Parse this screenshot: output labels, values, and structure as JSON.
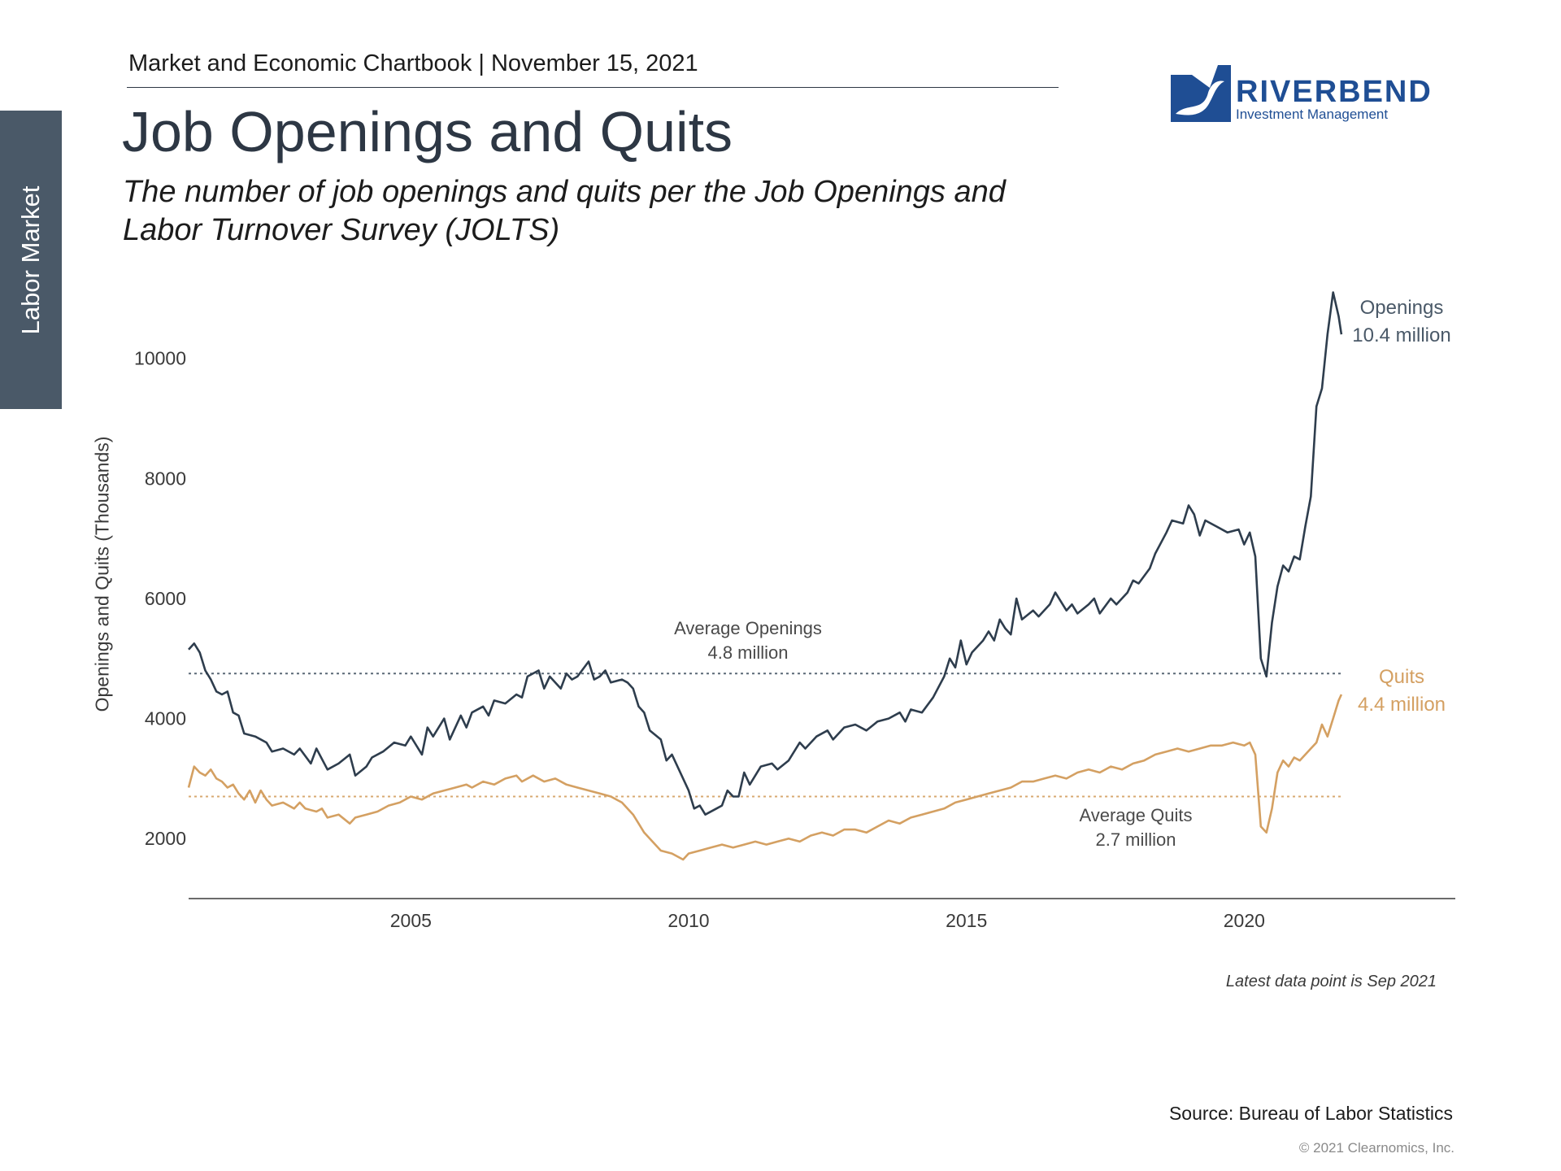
{
  "header": {
    "chartbook": "Market and Economic Chartbook | November 15, 2021",
    "title": "Job Openings and Quits",
    "subtitle": "The number of job openings and quits per the Job Openings and Labor Turnover Survey (JOLTS)"
  },
  "side_tab": {
    "label": "Labor Market"
  },
  "logo": {
    "name": "RIVERBEND",
    "tagline": "Investment Management",
    "color": "#1f4e94"
  },
  "footer": {
    "note": "Latest data point is Sep 2021",
    "source": "Source: Bureau of Labor Statistics",
    "copyright": "© 2021 Clearnomics, Inc."
  },
  "chart_data": {
    "type": "line",
    "title": "Job Openings and Quits",
    "xlabel": "",
    "ylabel": "Openings and Quits (Thousands)",
    "xlim": [
      2001.0,
      2023.8
    ],
    "ylim": [
      1000,
      11500
    ],
    "x_ticks": [
      2005,
      2010,
      2015,
      2020
    ],
    "y_ticks": [
      2000,
      4000,
      6000,
      8000,
      10000
    ],
    "grid": false,
    "series": [
      {
        "name": "Openings",
        "color": "#2e3d4d",
        "end_label": [
          "Openings",
          "10.4 million"
        ],
        "points": [
          [
            2001.0,
            5150
          ],
          [
            2001.1,
            5250
          ],
          [
            2001.2,
            5100
          ],
          [
            2001.3,
            4800
          ],
          [
            2001.4,
            4650
          ],
          [
            2001.5,
            4450
          ],
          [
            2001.6,
            4400
          ],
          [
            2001.7,
            4450
          ],
          [
            2001.8,
            4100
          ],
          [
            2001.9,
            4050
          ],
          [
            2002.0,
            3750
          ],
          [
            2002.2,
            3700
          ],
          [
            2002.4,
            3600
          ],
          [
            2002.5,
            3450
          ],
          [
            2002.7,
            3500
          ],
          [
            2002.9,
            3400
          ],
          [
            2003.0,
            3500
          ],
          [
            2003.2,
            3250
          ],
          [
            2003.3,
            3500
          ],
          [
            2003.5,
            3150
          ],
          [
            2003.7,
            3250
          ],
          [
            2003.9,
            3400
          ],
          [
            2004.0,
            3050
          ],
          [
            2004.2,
            3200
          ],
          [
            2004.3,
            3350
          ],
          [
            2004.5,
            3450
          ],
          [
            2004.7,
            3600
          ],
          [
            2004.9,
            3550
          ],
          [
            2005.0,
            3700
          ],
          [
            2005.2,
            3400
          ],
          [
            2005.3,
            3850
          ],
          [
            2005.4,
            3700
          ],
          [
            2005.6,
            4000
          ],
          [
            2005.7,
            3650
          ],
          [
            2005.9,
            4050
          ],
          [
            2006.0,
            3850
          ],
          [
            2006.1,
            4100
          ],
          [
            2006.3,
            4200
          ],
          [
            2006.4,
            4050
          ],
          [
            2006.5,
            4300
          ],
          [
            2006.7,
            4250
          ],
          [
            2006.9,
            4400
          ],
          [
            2007.0,
            4350
          ],
          [
            2007.1,
            4700
          ],
          [
            2007.3,
            4800
          ],
          [
            2007.4,
            4500
          ],
          [
            2007.5,
            4700
          ],
          [
            2007.7,
            4500
          ],
          [
            2007.8,
            4750
          ],
          [
            2007.9,
            4650
          ],
          [
            2008.0,
            4700
          ],
          [
            2008.2,
            4950
          ],
          [
            2008.3,
            4650
          ],
          [
            2008.4,
            4700
          ],
          [
            2008.5,
            4800
          ],
          [
            2008.6,
            4600
          ],
          [
            2008.8,
            4650
          ],
          [
            2008.9,
            4600
          ],
          [
            2009.0,
            4500
          ],
          [
            2009.1,
            4200
          ],
          [
            2009.2,
            4100
          ],
          [
            2009.3,
            3800
          ],
          [
            2009.5,
            3650
          ],
          [
            2009.6,
            3300
          ],
          [
            2009.7,
            3400
          ],
          [
            2009.9,
            3000
          ],
          [
            2010.0,
            2800
          ],
          [
            2010.1,
            2500
          ],
          [
            2010.2,
            2550
          ],
          [
            2010.3,
            2400
          ],
          [
            2010.5,
            2500
          ],
          [
            2010.6,
            2550
          ],
          [
            2010.7,
            2800
          ],
          [
            2010.8,
            2700
          ],
          [
            2010.9,
            2700
          ],
          [
            2011.0,
            3100
          ],
          [
            2011.1,
            2900
          ],
          [
            2011.2,
            3050
          ],
          [
            2011.3,
            3200
          ],
          [
            2011.5,
            3250
          ],
          [
            2011.6,
            3150
          ],
          [
            2011.8,
            3300
          ],
          [
            2012.0,
            3600
          ],
          [
            2012.1,
            3500
          ],
          [
            2012.3,
            3700
          ],
          [
            2012.5,
            3800
          ],
          [
            2012.6,
            3650
          ],
          [
            2012.8,
            3850
          ],
          [
            2013.0,
            3900
          ],
          [
            2013.2,
            3800
          ],
          [
            2013.4,
            3950
          ],
          [
            2013.6,
            4000
          ],
          [
            2013.8,
            4100
          ],
          [
            2013.9,
            3950
          ],
          [
            2014.0,
            4150
          ],
          [
            2014.2,
            4100
          ],
          [
            2014.4,
            4350
          ],
          [
            2014.6,
            4700
          ],
          [
            2014.7,
            5000
          ],
          [
            2014.8,
            4850
          ],
          [
            2014.9,
            5300
          ],
          [
            2015.0,
            4900
          ],
          [
            2015.1,
            5100
          ],
          [
            2015.3,
            5300
          ],
          [
            2015.4,
            5450
          ],
          [
            2015.5,
            5300
          ],
          [
            2015.6,
            5650
          ],
          [
            2015.7,
            5500
          ],
          [
            2015.8,
            5400
          ],
          [
            2015.9,
            6000
          ],
          [
            2016.0,
            5650
          ],
          [
            2016.2,
            5800
          ],
          [
            2016.3,
            5700
          ],
          [
            2016.5,
            5900
          ],
          [
            2016.6,
            6100
          ],
          [
            2016.8,
            5800
          ],
          [
            2016.9,
            5900
          ],
          [
            2017.0,
            5750
          ],
          [
            2017.2,
            5900
          ],
          [
            2017.3,
            6000
          ],
          [
            2017.4,
            5750
          ],
          [
            2017.6,
            6000
          ],
          [
            2017.7,
            5900
          ],
          [
            2017.9,
            6100
          ],
          [
            2018.0,
            6300
          ],
          [
            2018.1,
            6250
          ],
          [
            2018.3,
            6500
          ],
          [
            2018.4,
            6750
          ],
          [
            2018.6,
            7100
          ],
          [
            2018.7,
            7300
          ],
          [
            2018.9,
            7250
          ],
          [
            2019.0,
            7550
          ],
          [
            2019.1,
            7400
          ],
          [
            2019.2,
            7050
          ],
          [
            2019.3,
            7300
          ],
          [
            2019.5,
            7200
          ],
          [
            2019.7,
            7100
          ],
          [
            2019.9,
            7150
          ],
          [
            2020.0,
            6900
          ],
          [
            2020.1,
            7100
          ],
          [
            2020.2,
            6700
          ],
          [
            2020.3,
            5000
          ],
          [
            2020.4,
            4700
          ],
          [
            2020.5,
            5600
          ],
          [
            2020.6,
            6200
          ],
          [
            2020.7,
            6550
          ],
          [
            2020.8,
            6450
          ],
          [
            2020.9,
            6700
          ],
          [
            2021.0,
            6650
          ],
          [
            2021.1,
            7200
          ],
          [
            2021.2,
            7700
          ],
          [
            2021.3,
            9200
          ],
          [
            2021.4,
            9500
          ],
          [
            2021.5,
            10400
          ],
          [
            2021.6,
            11100
          ],
          [
            2021.7,
            10700
          ],
          [
            2021.75,
            10400
          ]
        ]
      },
      {
        "name": "Quits",
        "color": "#d4a062",
        "end_label": [
          "Quits",
          "4.4 million"
        ],
        "points": [
          [
            2001.0,
            2850
          ],
          [
            2001.1,
            3200
          ],
          [
            2001.2,
            3100
          ],
          [
            2001.3,
            3050
          ],
          [
            2001.4,
            3150
          ],
          [
            2001.5,
            3000
          ],
          [
            2001.6,
            2950
          ],
          [
            2001.7,
            2850
          ],
          [
            2001.8,
            2900
          ],
          [
            2001.9,
            2750
          ],
          [
            2002.0,
            2650
          ],
          [
            2002.1,
            2800
          ],
          [
            2002.2,
            2600
          ],
          [
            2002.3,
            2800
          ],
          [
            2002.4,
            2650
          ],
          [
            2002.5,
            2550
          ],
          [
            2002.7,
            2600
          ],
          [
            2002.9,
            2500
          ],
          [
            2003.0,
            2600
          ],
          [
            2003.1,
            2500
          ],
          [
            2003.3,
            2450
          ],
          [
            2003.4,
            2500
          ],
          [
            2003.5,
            2350
          ],
          [
            2003.7,
            2400
          ],
          [
            2003.9,
            2250
          ],
          [
            2004.0,
            2350
          ],
          [
            2004.2,
            2400
          ],
          [
            2004.4,
            2450
          ],
          [
            2004.6,
            2550
          ],
          [
            2004.8,
            2600
          ],
          [
            2005.0,
            2700
          ],
          [
            2005.2,
            2650
          ],
          [
            2005.4,
            2750
          ],
          [
            2005.6,
            2800
          ],
          [
            2005.8,
            2850
          ],
          [
            2006.0,
            2900
          ],
          [
            2006.1,
            2850
          ],
          [
            2006.3,
            2950
          ],
          [
            2006.5,
            2900
          ],
          [
            2006.7,
            3000
          ],
          [
            2006.9,
            3050
          ],
          [
            2007.0,
            2950
          ],
          [
            2007.2,
            3050
          ],
          [
            2007.4,
            2950
          ],
          [
            2007.6,
            3000
          ],
          [
            2007.8,
            2900
          ],
          [
            2008.0,
            2850
          ],
          [
            2008.2,
            2800
          ],
          [
            2008.4,
            2750
          ],
          [
            2008.6,
            2700
          ],
          [
            2008.8,
            2600
          ],
          [
            2009.0,
            2400
          ],
          [
            2009.1,
            2250
          ],
          [
            2009.2,
            2100
          ],
          [
            2009.3,
            2000
          ],
          [
            2009.4,
            1900
          ],
          [
            2009.5,
            1800
          ],
          [
            2009.7,
            1750
          ],
          [
            2009.9,
            1650
          ],
          [
            2010.0,
            1750
          ],
          [
            2010.2,
            1800
          ],
          [
            2010.4,
            1850
          ],
          [
            2010.6,
            1900
          ],
          [
            2010.8,
            1850
          ],
          [
            2011.0,
            1900
          ],
          [
            2011.2,
            1950
          ],
          [
            2011.4,
            1900
          ],
          [
            2011.6,
            1950
          ],
          [
            2011.8,
            2000
          ],
          [
            2012.0,
            1950
          ],
          [
            2012.2,
            2050
          ],
          [
            2012.4,
            2100
          ],
          [
            2012.6,
            2050
          ],
          [
            2012.8,
            2150
          ],
          [
            2013.0,
            2150
          ],
          [
            2013.2,
            2100
          ],
          [
            2013.4,
            2200
          ],
          [
            2013.6,
            2300
          ],
          [
            2013.8,
            2250
          ],
          [
            2014.0,
            2350
          ],
          [
            2014.2,
            2400
          ],
          [
            2014.4,
            2450
          ],
          [
            2014.6,
            2500
          ],
          [
            2014.8,
            2600
          ],
          [
            2015.0,
            2650
          ],
          [
            2015.2,
            2700
          ],
          [
            2015.4,
            2750
          ],
          [
            2015.6,
            2800
          ],
          [
            2015.8,
            2850
          ],
          [
            2016.0,
            2950
          ],
          [
            2016.2,
            2950
          ],
          [
            2016.4,
            3000
          ],
          [
            2016.6,
            3050
          ],
          [
            2016.8,
            3000
          ],
          [
            2017.0,
            3100
          ],
          [
            2017.2,
            3150
          ],
          [
            2017.4,
            3100
          ],
          [
            2017.6,
            3200
          ],
          [
            2017.8,
            3150
          ],
          [
            2018.0,
            3250
          ],
          [
            2018.2,
            3300
          ],
          [
            2018.4,
            3400
          ],
          [
            2018.6,
            3450
          ],
          [
            2018.8,
            3500
          ],
          [
            2019.0,
            3450
          ],
          [
            2019.2,
            3500
          ],
          [
            2019.4,
            3550
          ],
          [
            2019.6,
            3550
          ],
          [
            2019.8,
            3600
          ],
          [
            2020.0,
            3550
          ],
          [
            2020.1,
            3600
          ],
          [
            2020.2,
            3400
          ],
          [
            2020.3,
            2200
          ],
          [
            2020.4,
            2100
          ],
          [
            2020.5,
            2500
          ],
          [
            2020.6,
            3100
          ],
          [
            2020.7,
            3300
          ],
          [
            2020.8,
            3200
          ],
          [
            2020.9,
            3350
          ],
          [
            2021.0,
            3300
          ],
          [
            2021.1,
            3400
          ],
          [
            2021.2,
            3500
          ],
          [
            2021.3,
            3600
          ],
          [
            2021.4,
            3900
          ],
          [
            2021.5,
            3700
          ],
          [
            2021.6,
            4000
          ],
          [
            2021.7,
            4300
          ],
          [
            2021.75,
            4400
          ]
        ]
      }
    ],
    "reference_lines": [
      {
        "name": "Average Openings",
        "value": 4750,
        "label": [
          "Average Openings",
          "4.8 million"
        ],
        "color": "#4a5968"
      },
      {
        "name": "Average Quits",
        "value": 2700,
        "label": [
          "Average Quits",
          "2.7 million"
        ],
        "color": "#d4a062"
      }
    ]
  }
}
